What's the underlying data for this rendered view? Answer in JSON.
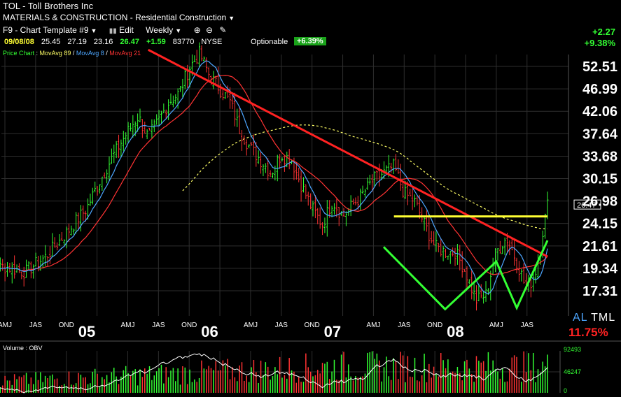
{
  "header": {
    "title": "TOL - Toll Brothers Inc",
    "sector": "MATERIALS & CONSTRUCTION - Residential Construction",
    "template": "F9 - Chart Template #9",
    "edit_label": "Edit",
    "period": "Weekly"
  },
  "quote": {
    "date": "09/08/08",
    "open": "25.45",
    "high": "27.19",
    "low": "23.16",
    "close": "26.47",
    "change": "+1.59",
    "volume": "83770",
    "exchange": "NYSE",
    "optionable": "Optionable",
    "pct_change": "+6.39%"
  },
  "change_abs": "+2.27",
  "change_pct": "+9.38%",
  "legend": {
    "price": "Price Chart",
    "ma89": "MovAvg 89",
    "ma8": "MovAvg 8",
    "ma21": "MovAvg 21"
  },
  "volume_legend": "Volume : OBV",
  "al_tml": {
    "al": "AL",
    "tml": "TML",
    "pct": "11.75%"
  },
  "colors": {
    "up": "#33ff33",
    "down": "#ff3333",
    "ma8": "#4da6ff",
    "ma21": "#ff3333",
    "ma89": "#ffff66",
    "trendline": "#ff2222",
    "resistance": "#ffff33",
    "pattern": "#33ff33"
  },
  "chart_data": {
    "type": "candlestick",
    "price_axis": {
      "scale": "log",
      "ticks": [
        52.51,
        46.99,
        42.06,
        37.64,
        33.68,
        30.15,
        26.98,
        24.15,
        21.61,
        19.34,
        17.31
      ],
      "tick_labels": [
        "52.51",
        "46.99",
        "42.06",
        "37.64",
        "33.68",
        "30.15",
        "26.98",
        "24.15",
        "21.61",
        "19.34",
        "17.31"
      ]
    },
    "last_price": 26.47,
    "last_price_label": "26.47",
    "time_axis": {
      "labels": [
        "AMJ",
        "JAS",
        "OND",
        "AMJ",
        "JAS",
        "OND",
        "AMJ",
        "JAS",
        "OND",
        "AMJ",
        "JAS",
        "OND",
        "AMJ",
        "JAS"
      ],
      "years": [
        "05",
        "06",
        "07",
        "08"
      ]
    },
    "series": [
      {
        "name": "MovAvg 8",
        "style": "blue line"
      },
      {
        "name": "MovAvg 21",
        "style": "red line"
      },
      {
        "name": "MovAvg 89",
        "style": "yellow dashed line"
      }
    ],
    "annotations": {
      "downtrend_line": [
        [
          "2005-07",
          57.0
        ],
        [
          "2008-10",
          20.5
        ]
      ],
      "resistance_line": [
        [
          "2007-07",
          25.0
        ],
        [
          "2008-10",
          25.0
        ]
      ],
      "w_pattern": [
        [
          "2007-06",
          21.5
        ],
        [
          "2007-12",
          15.8
        ],
        [
          "2008-05",
          20.0
        ],
        [
          "2008-07",
          15.9
        ],
        [
          "2008-10",
          22.2
        ]
      ]
    },
    "volume_axis": {
      "ticks": [
        92493,
        46247,
        0
      ],
      "tick_labels": [
        "92493",
        "46247",
        "0"
      ]
    }
  }
}
